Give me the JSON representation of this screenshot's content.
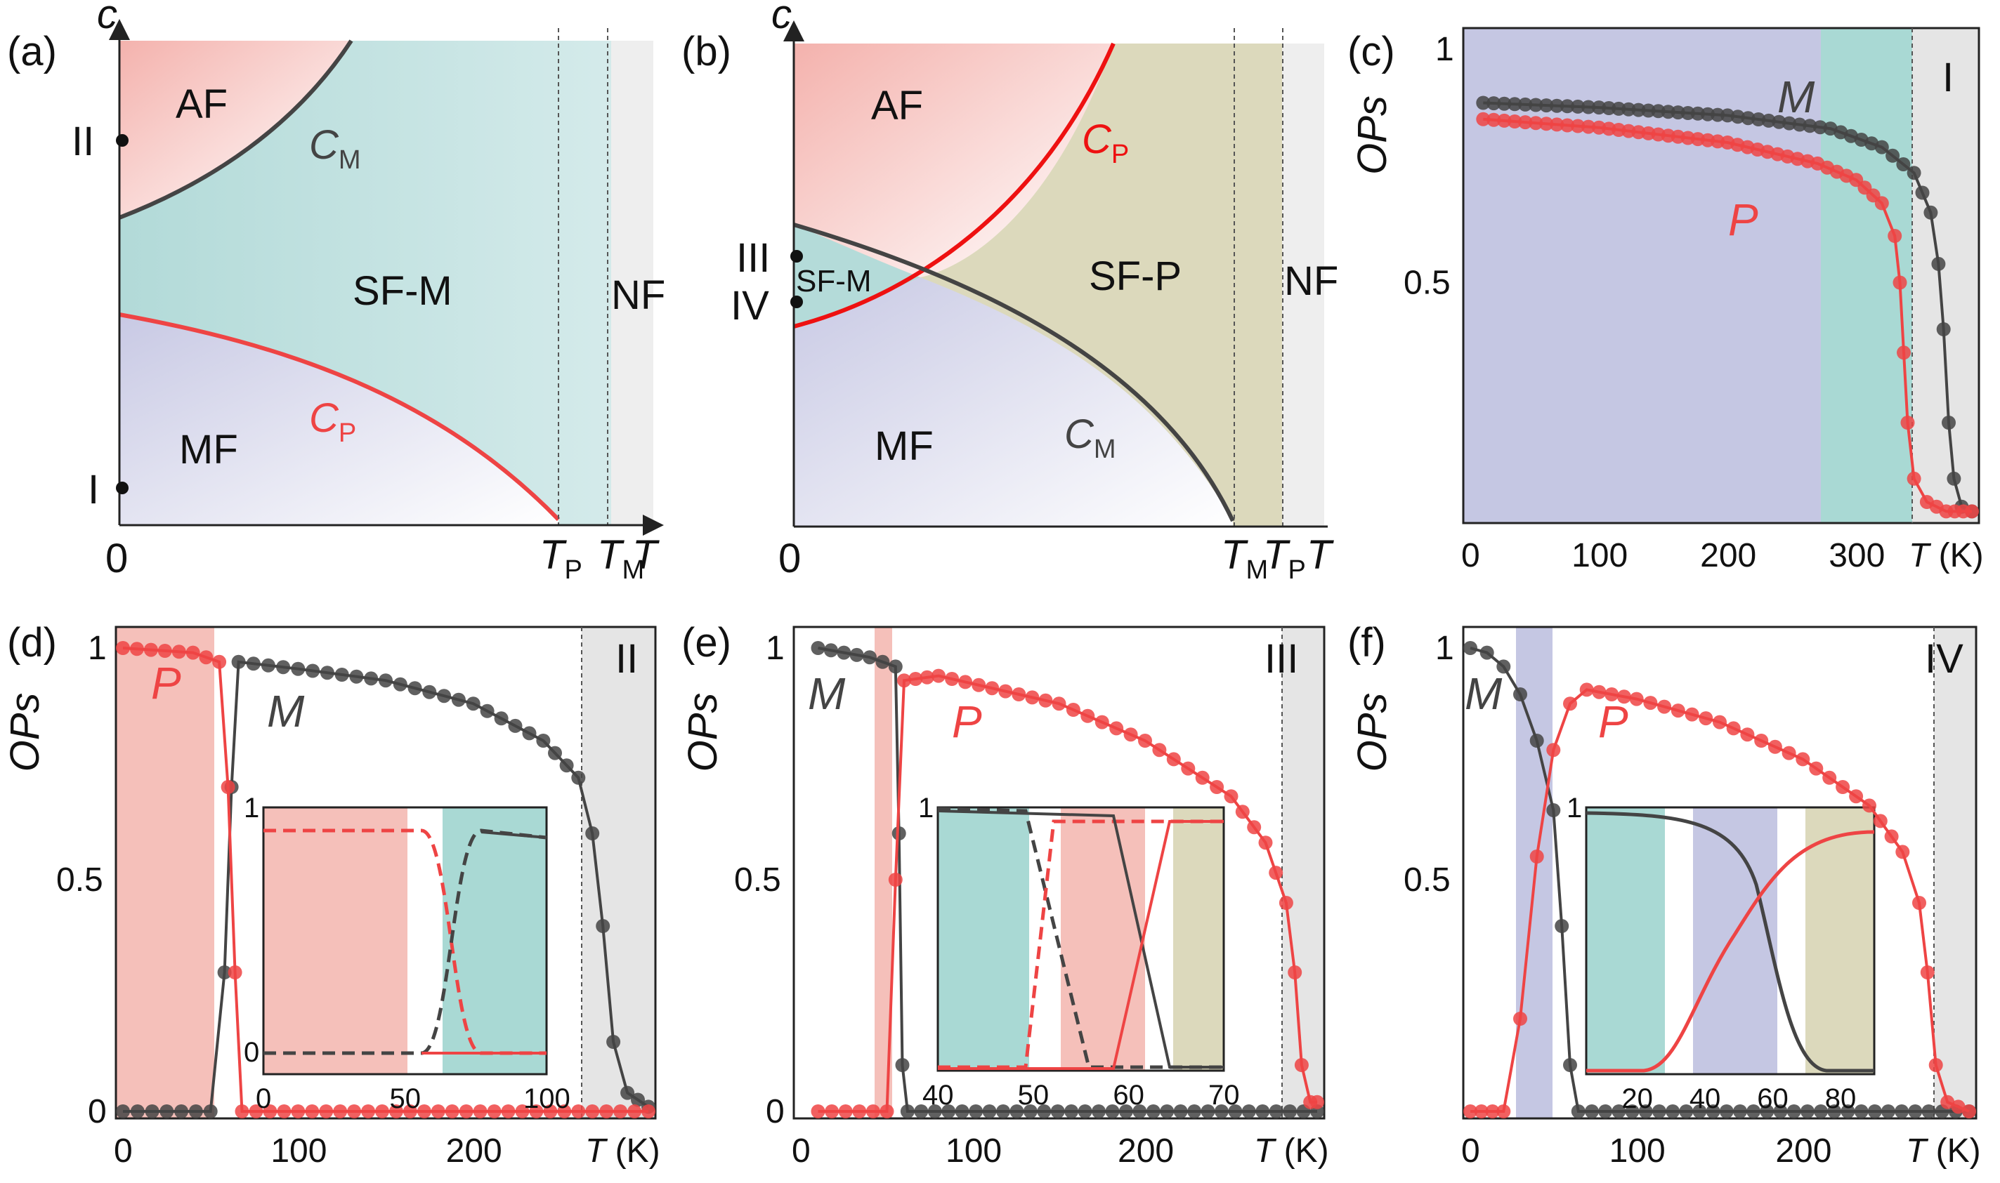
{
  "chart_data": [
    {
      "panel": "(a)",
      "type": "area",
      "title": "",
      "xlabel": "T",
      "ylabel": "c",
      "x_ticks": [
        "0",
        "T_P",
        "T_M"
      ],
      "y_points": [
        {
          "label": "II",
          "c": 0.8
        },
        {
          "label": "I",
          "c": 0.08
        }
      ],
      "regions": [
        "AF",
        "SF-M",
        "MF",
        "NF"
      ],
      "curves": [
        {
          "name": "C_M",
          "color": "#444444",
          "points": [
            [
              0,
              0.64
            ],
            [
              0.2,
              0.8
            ],
            [
              0.34,
              0.9
            ],
            [
              0.46,
              1.0
            ]
          ]
        },
        {
          "name": "C_P",
          "color": "#ee4444",
          "points": [
            [
              0,
              0.44
            ],
            [
              0.3,
              0.37
            ],
            [
              0.6,
              0.25
            ],
            [
              0.83,
              0.03
            ]
          ]
        }
      ],
      "transition_temperatures": {
        "T_P": 0.83,
        "T_M": 0.92
      }
    },
    {
      "panel": "(b)",
      "type": "area",
      "title": "",
      "xlabel": "T",
      "ylabel": "c",
      "x_ticks": [
        "0",
        "T_M",
        "T_P"
      ],
      "y_points": [
        {
          "label": "III",
          "c": 0.56
        },
        {
          "label": "IV",
          "c": 0.47
        }
      ],
      "regions": [
        "AF",
        "SF-M",
        "SF-P",
        "MF",
        "NF"
      ],
      "curves": [
        {
          "name": "C_P",
          "color": "#ee1111",
          "points": [
            [
              0,
              0.42
            ],
            [
              0.3,
              0.52
            ],
            [
              0.55,
              0.72
            ],
            [
              0.72,
              1.0
            ]
          ]
        },
        {
          "name": "C_M",
          "color": "#444444",
          "points": [
            [
              0,
              0.62
            ],
            [
              0.3,
              0.52
            ],
            [
              0.65,
              0.3
            ],
            [
              0.83,
              0.02
            ]
          ]
        }
      ],
      "transition_temperatures": {
        "T_M": 0.83,
        "T_P": 0.92
      }
    },
    {
      "panel": "(c)",
      "type": "line",
      "title": "",
      "xlabel": "T (K)",
      "ylabel": "OPs",
      "xlim": [
        0,
        390
      ],
      "ylim": [
        0,
        1
      ],
      "x_ticks": [
        "0",
        "100",
        "200",
        "300",
        "T (K)"
      ],
      "y_ticks": [
        "0.5",
        "1"
      ],
      "region_label": "I",
      "series": [
        {
          "name": "M",
          "color": "#444444",
          "points": [
            [
              10,
              0.885
            ],
            [
              100,
              0.875
            ],
            [
              200,
              0.858
            ],
            [
              280,
              0.83
            ],
            [
              320,
              0.79
            ],
            [
              345,
              0.735
            ],
            [
              358,
              0.65
            ],
            [
              364,
              0.54
            ],
            [
              368,
              0.4
            ],
            [
              372,
              0.2
            ],
            [
              376,
              0.08
            ],
            [
              382,
              0.02
            ],
            [
              390,
              0.01
            ]
          ]
        },
        {
          "name": "P",
          "color": "#ee4444",
          "points": [
            [
              10,
              0.85
            ],
            [
              100,
              0.832
            ],
            [
              200,
              0.8
            ],
            [
              270,
              0.755
            ],
            [
              300,
              0.72
            ],
            [
              320,
              0.67
            ],
            [
              330,
              0.6
            ],
            [
              334,
              0.5
            ],
            [
              337,
              0.35
            ],
            [
              340,
              0.2
            ],
            [
              345,
              0.08
            ],
            [
              355,
              0.03
            ],
            [
              370,
              0.01
            ],
            [
              390,
              0.01
            ]
          ]
        }
      ]
    },
    {
      "panel": "(d)",
      "type": "line",
      "title": "",
      "xlabel": "T (K)",
      "ylabel": "OPs",
      "xlim": [
        0,
        300
      ],
      "ylim": [
        0,
        1
      ],
      "x_ticks": [
        "0",
        "100",
        "200",
        "T (K)"
      ],
      "y_ticks": [
        "0",
        "0.5",
        "1"
      ],
      "region_label": "II",
      "series": [
        {
          "name": "M",
          "color": "#444444",
          "points": [
            [
              0,
              0
            ],
            [
              50,
              0
            ],
            [
              58,
              0.3
            ],
            [
              62,
              0.7
            ],
            [
              66,
              0.97
            ],
            [
              100,
              0.955
            ],
            [
              150,
              0.93
            ],
            [
              200,
              0.88
            ],
            [
              240,
              0.8
            ],
            [
              260,
              0.72
            ],
            [
              268,
              0.6
            ],
            [
              274,
              0.4
            ],
            [
              280,
              0.15
            ],
            [
              288,
              0.04
            ],
            [
              300,
              0.01
            ]
          ]
        },
        {
          "name": "P",
          "color": "#ee4444",
          "points": [
            [
              0,
              1
            ],
            [
              40,
              0.99
            ],
            [
              55,
              0.97
            ],
            [
              60,
              0.7
            ],
            [
              64,
              0.3
            ],
            [
              68,
              0
            ],
            [
              300,
              0
            ]
          ]
        }
      ],
      "inset": {
        "xlim": [
          0,
          100
        ],
        "x_ticks": [
          "0",
          "50",
          "100"
        ],
        "y_ticks": [
          "0",
          "1"
        ]
      }
    },
    {
      "panel": "(e)",
      "type": "line",
      "title": "",
      "xlabel": "T (K)",
      "ylabel": "OPs",
      "xlim": [
        0,
        300
      ],
      "ylim": [
        0,
        1
      ],
      "x_ticks": [
        "0",
        "100",
        "200",
        "T (K)"
      ],
      "y_ticks": [
        "0",
        "0.5",
        "1"
      ],
      "region_label": "III",
      "series": [
        {
          "name": "M",
          "color": "#444444",
          "points": [
            [
              10,
              1
            ],
            [
              40,
              0.98
            ],
            [
              55,
              0.96
            ],
            [
              57,
              0.6
            ],
            [
              59,
              0.1
            ],
            [
              62,
              0
            ],
            [
              300,
              0
            ]
          ]
        },
        {
          "name": "P",
          "color": "#ee4444",
          "points": [
            [
              10,
              0
            ],
            [
              50,
              0
            ],
            [
              55,
              0.5
            ],
            [
              60,
              0.93
            ],
            [
              80,
              0.94
            ],
            [
              150,
              0.88
            ],
            [
              200,
              0.8
            ],
            [
              250,
              0.68
            ],
            [
              270,
              0.58
            ],
            [
              282,
              0.45
            ],
            [
              287,
              0.3
            ],
            [
              291,
              0.1
            ],
            [
              296,
              0.02
            ],
            [
              300,
              0.02
            ]
          ]
        }
      ],
      "inset": {
        "xlim": [
          40,
          70
        ],
        "x_ticks": [
          "40",
          "50",
          "60",
          "70"
        ],
        "y_ticks": [
          "1"
        ]
      }
    },
    {
      "panel": "(f)",
      "type": "line",
      "title": "",
      "xlabel": "T (K)",
      "ylabel": "OPs",
      "xlim": [
        0,
        300
      ],
      "ylim": [
        0,
        1
      ],
      "x_ticks": [
        "0",
        "100",
        "200",
        "T (K)"
      ],
      "y_ticks": [
        "0.5",
        "1"
      ],
      "region_label": "IV",
      "series": [
        {
          "name": "M",
          "color": "#444444",
          "points": [
            [
              0,
              1
            ],
            [
              10,
              0.99
            ],
            [
              20,
              0.96
            ],
            [
              30,
              0.9
            ],
            [
              40,
              0.8
            ],
            [
              50,
              0.65
            ],
            [
              55,
              0.4
            ],
            [
              60,
              0.1
            ],
            [
              65,
              0
            ],
            [
              300,
              0
            ]
          ]
        },
        {
          "name": "P",
          "color": "#ee4444",
          "points": [
            [
              0,
              0
            ],
            [
              20,
              0
            ],
            [
              30,
              0.2
            ],
            [
              40,
              0.55
            ],
            [
              50,
              0.78
            ],
            [
              60,
              0.88
            ],
            [
              70,
              0.91
            ],
            [
              100,
              0.89
            ],
            [
              150,
              0.84
            ],
            [
              200,
              0.76
            ],
            [
              240,
              0.66
            ],
            [
              260,
              0.56
            ],
            [
              270,
              0.45
            ],
            [
              275,
              0.3
            ],
            [
              280,
              0.1
            ],
            [
              287,
              0.02
            ],
            [
              300,
              0
            ]
          ]
        }
      ],
      "inset": {
        "xlim": [
          5,
          90
        ],
        "x_ticks": [
          "20",
          "40",
          "60",
          "80"
        ],
        "y_ticks": [
          "1"
        ]
      }
    }
  ]
}
